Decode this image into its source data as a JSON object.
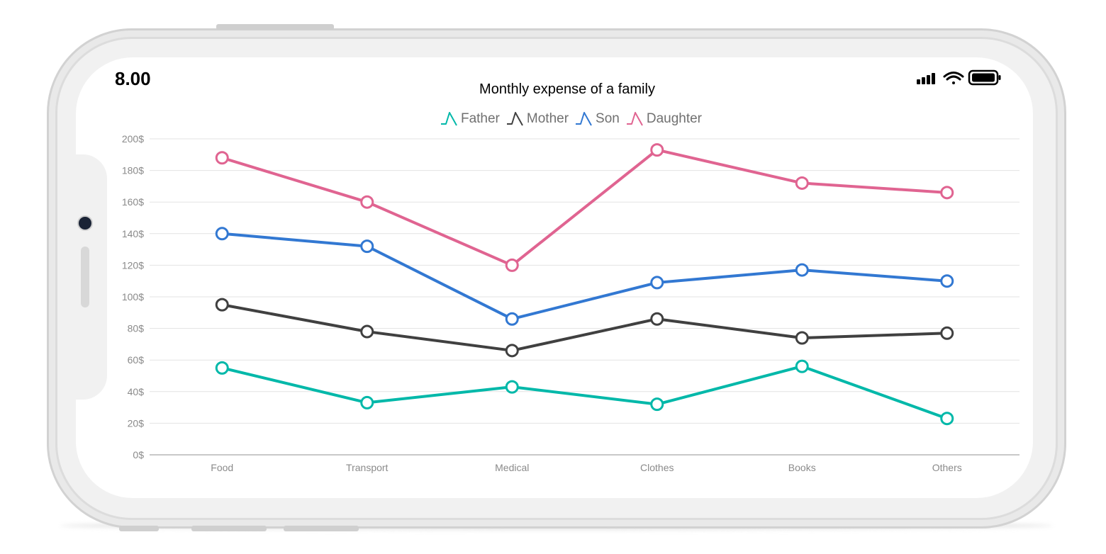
{
  "status_bar": {
    "time": "8.00",
    "icons": [
      "signal-icon",
      "wifi-icon",
      "battery-icon"
    ]
  },
  "chart_data": {
    "type": "line",
    "title": "Monthly expense of a family",
    "xlabel": "",
    "ylabel": "",
    "categories": [
      "Food",
      "Transport",
      "Medical",
      "Clothes",
      "Books",
      "Others"
    ],
    "ylim": [
      0,
      200
    ],
    "y_ticks": [
      0,
      20,
      40,
      60,
      80,
      100,
      120,
      140,
      160,
      180,
      200
    ],
    "y_tick_suffix": "$",
    "grid": "horizontal",
    "legend_position": "top-center",
    "markers": "hollow-circle",
    "series": [
      {
        "name": "Father",
        "color": "#00b8a9",
        "values": [
          55,
          33,
          43,
          32,
          56,
          23
        ]
      },
      {
        "name": "Mother",
        "color": "#404040",
        "values": [
          95,
          78,
          66,
          86,
          74,
          77
        ]
      },
      {
        "name": "Son",
        "color": "#3278d2",
        "values": [
          140,
          132,
          86,
          109,
          117,
          110
        ]
      },
      {
        "name": "Daughter",
        "color": "#e06491",
        "values": [
          188,
          160,
          120,
          193,
          172,
          166
        ]
      }
    ]
  }
}
